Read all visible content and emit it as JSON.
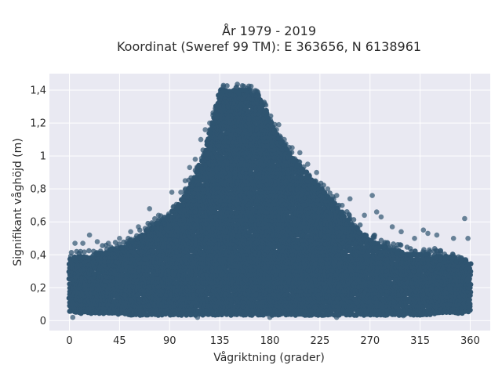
{
  "chart_data": {
    "type": "scatter",
    "title_line1": "År 1979 - 2019",
    "title_line2": "Koordinat (Sweref 99 TM): E 363656, N 6138961",
    "xlabel": "Vågriktning (grader)",
    "ylabel": "Signifikant våghöjd (m)",
    "xlim": [
      -18,
      378
    ],
    "ylim": [
      -0.06,
      1.5
    ],
    "x_ticks": [
      0,
      45,
      90,
      135,
      180,
      225,
      270,
      315,
      360
    ],
    "x_tick_labels": [
      "0",
      "45",
      "90",
      "135",
      "180",
      "225",
      "270",
      "315",
      "360"
    ],
    "y_ticks": [
      0,
      0.2,
      0.4,
      0.6,
      0.8,
      1.0,
      1.2,
      1.4
    ],
    "y_tick_labels": [
      "0",
      "0,2",
      "0,4",
      "0,6",
      "0,8",
      "1",
      "1,2",
      "1,4"
    ],
    "grid": true,
    "marker_color": "#2f5470",
    "plot_background": "#e9e9f2",
    "envelope": {
      "x": [
        0,
        10,
        20,
        30,
        40,
        50,
        60,
        70,
        80,
        90,
        100,
        110,
        120,
        130,
        135,
        140,
        150,
        160,
        170,
        180,
        190,
        200,
        210,
        220,
        230,
        240,
        250,
        260,
        270,
        280,
        290,
        300,
        310,
        320,
        330,
        340,
        350,
        360
      ],
      "y_max": [
        0.38,
        0.4,
        0.4,
        0.42,
        0.44,
        0.46,
        0.5,
        0.55,
        0.6,
        0.64,
        0.72,
        0.85,
        1.0,
        1.25,
        1.4,
        1.4,
        1.4,
        1.4,
        1.38,
        1.22,
        1.1,
        1.0,
        0.92,
        0.85,
        0.78,
        0.7,
        0.62,
        0.55,
        0.5,
        0.46,
        0.43,
        0.42,
        0.41,
        0.4,
        0.4,
        0.39,
        0.38,
        0.36
      ],
      "y_min": [
        0.06,
        0.05,
        0.05,
        0.05,
        0.05,
        0.04,
        0.04,
        0.04,
        0.04,
        0.04,
        0.04,
        0.04,
        0.04,
        0.04,
        0.04,
        0.04,
        0.04,
        0.04,
        0.04,
        0.04,
        0.04,
        0.04,
        0.04,
        0.04,
        0.04,
        0.04,
        0.04,
        0.04,
        0.04,
        0.04,
        0.04,
        0.04,
        0.04,
        0.04,
        0.05,
        0.05,
        0.05,
        0.06
      ]
    },
    "outliers": [
      {
        "x": 5,
        "y": 0.47
      },
      {
        "x": 12,
        "y": 0.47
      },
      {
        "x": 18,
        "y": 0.52
      },
      {
        "x": 25,
        "y": 0.48
      },
      {
        "x": 35,
        "y": 0.47
      },
      {
        "x": 45,
        "y": 0.5
      },
      {
        "x": 55,
        "y": 0.54
      },
      {
        "x": 62,
        "y": 0.57
      },
      {
        "x": 68,
        "y": 0.56
      },
      {
        "x": 72,
        "y": 0.68
      },
      {
        "x": 80,
        "y": 0.64
      },
      {
        "x": 85,
        "y": 0.6
      },
      {
        "x": 92,
        "y": 0.78
      },
      {
        "x": 100,
        "y": 0.78
      },
      {
        "x": 104,
        "y": 0.85
      },
      {
        "x": 108,
        "y": 0.93
      },
      {
        "x": 113,
        "y": 0.98
      },
      {
        "x": 118,
        "y": 1.1
      },
      {
        "x": 122,
        "y": 1.16
      },
      {
        "x": 126,
        "y": 1.2
      },
      {
        "x": 188,
        "y": 1.19
      },
      {
        "x": 193,
        "y": 1.1
      },
      {
        "x": 200,
        "y": 1.05
      },
      {
        "x": 207,
        "y": 1.02
      },
      {
        "x": 214,
        "y": 0.95
      },
      {
        "x": 222,
        "y": 0.9
      },
      {
        "x": 232,
        "y": 0.8
      },
      {
        "x": 240,
        "y": 0.76
      },
      {
        "x": 245,
        "y": 0.7
      },
      {
        "x": 252,
        "y": 0.74
      },
      {
        "x": 265,
        "y": 0.64
      },
      {
        "x": 272,
        "y": 0.76
      },
      {
        "x": 276,
        "y": 0.66
      },
      {
        "x": 280,
        "y": 0.63
      },
      {
        "x": 290,
        "y": 0.57
      },
      {
        "x": 298,
        "y": 0.54
      },
      {
        "x": 310,
        "y": 0.5
      },
      {
        "x": 318,
        "y": 0.55
      },
      {
        "x": 322,
        "y": 0.53
      },
      {
        "x": 330,
        "y": 0.52
      },
      {
        "x": 345,
        "y": 0.5
      },
      {
        "x": 355,
        "y": 0.62
      },
      {
        "x": 358,
        "y": 0.5
      },
      {
        "x": 3,
        "y": 0.02
      },
      {
        "x": 115,
        "y": 0.02
      },
      {
        "x": 180,
        "y": 0.02
      },
      {
        "x": 240,
        "y": 0.02
      },
      {
        "x": 300,
        "y": 0.03
      }
    ]
  }
}
